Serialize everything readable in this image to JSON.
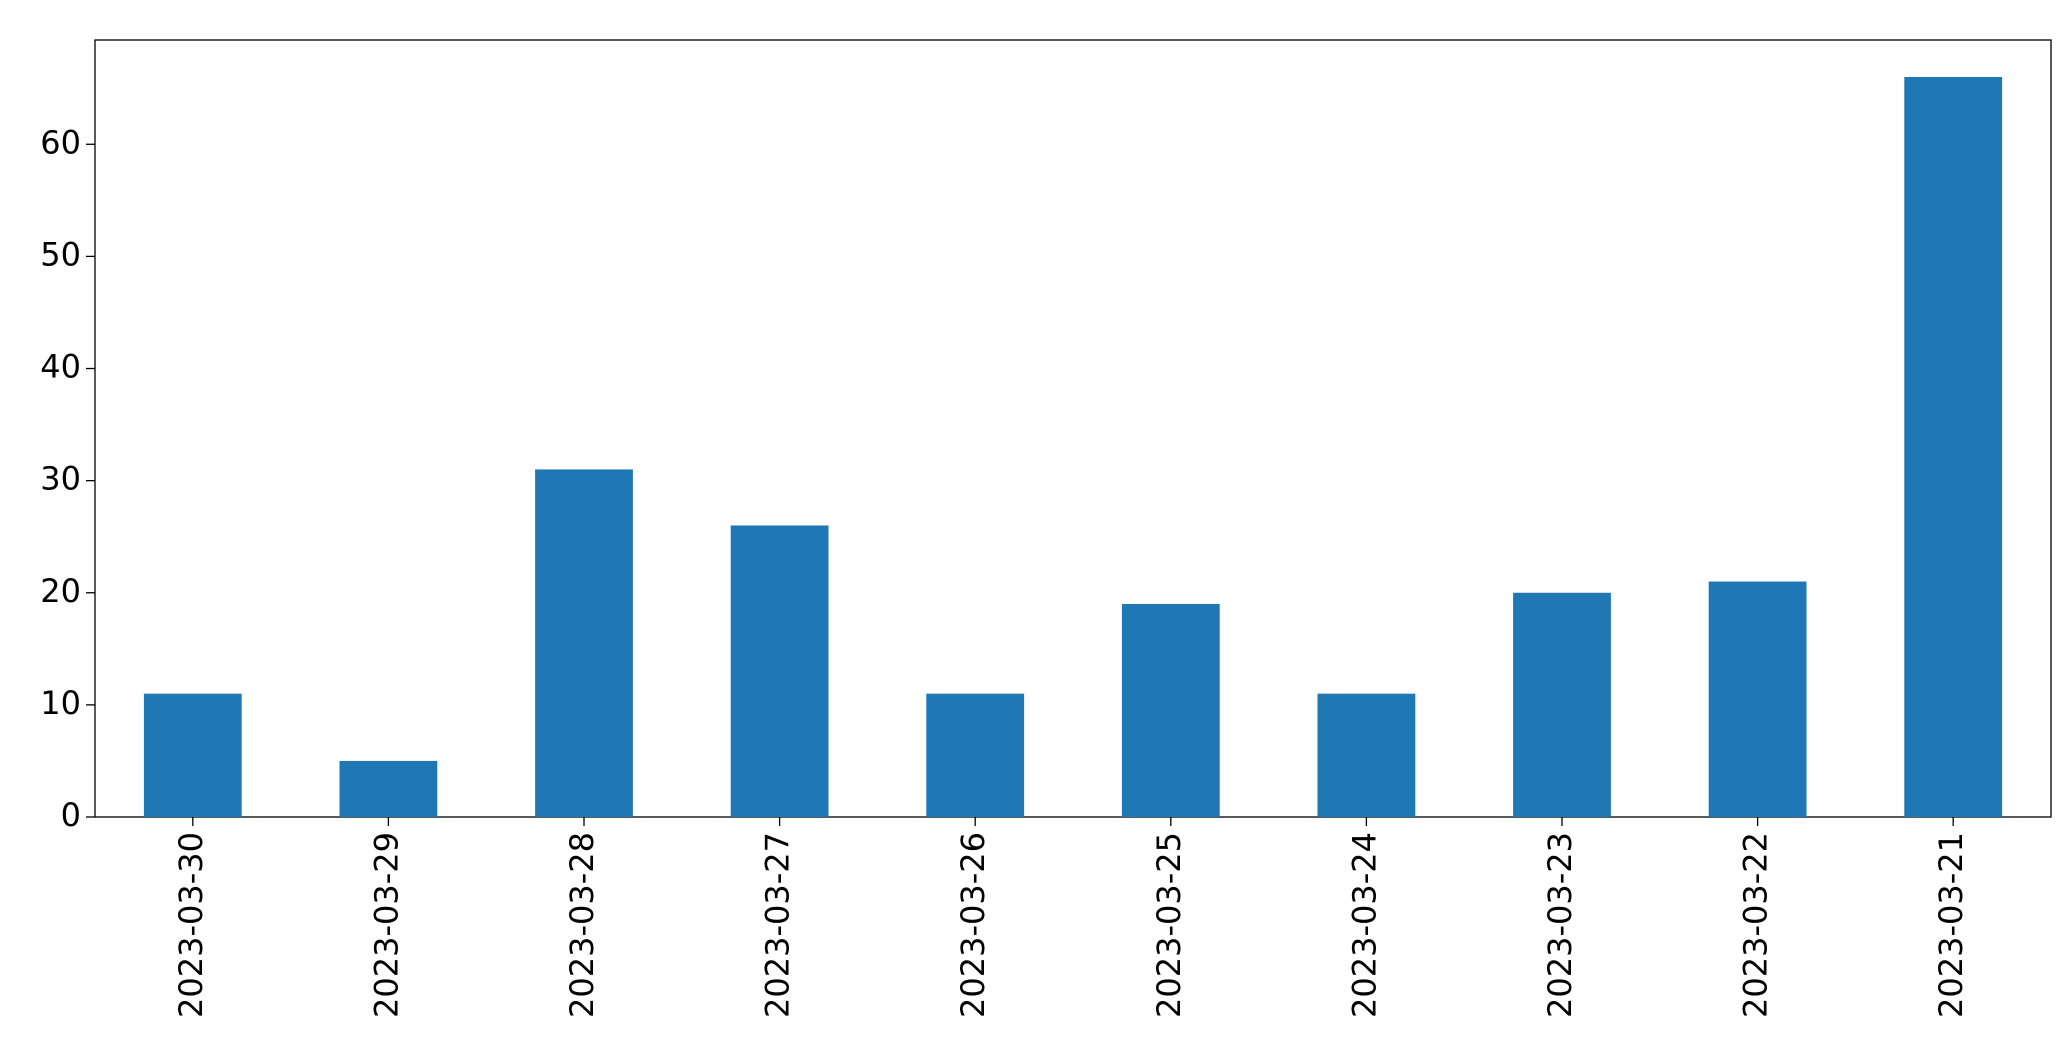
{
  "chart_data": {
    "type": "bar",
    "categories": [
      "2023-03-30",
      "2023-03-29",
      "2023-03-28",
      "2023-03-27",
      "2023-03-26",
      "2023-03-25",
      "2023-03-24",
      "2023-03-23",
      "2023-03-22",
      "2023-03-21"
    ],
    "values": [
      11,
      5,
      31,
      26,
      11,
      19,
      11,
      20,
      21,
      66
    ],
    "color": "#1f77b4",
    "ylim": [
      0,
      69.3
    ],
    "yticks": [
      0,
      10,
      20,
      30,
      40,
      50,
      60
    ],
    "grid": false
  }
}
